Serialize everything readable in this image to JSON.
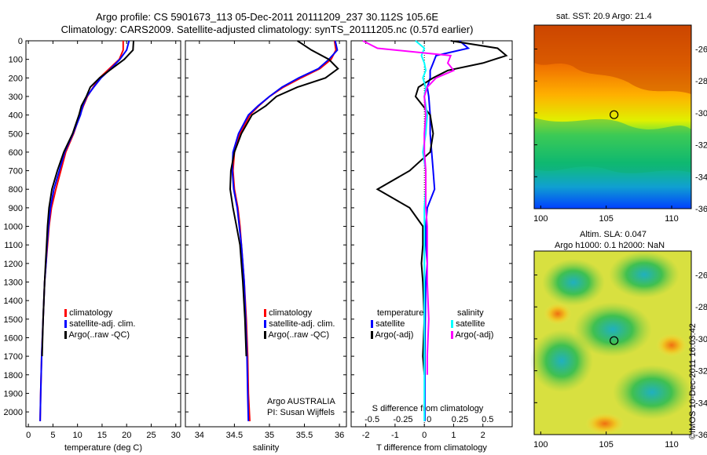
{
  "header": {
    "title_line1": "Argo profile: CS 5901673_113 05-Dec-2011 20111209_237 30.112S 105.6E",
    "title_line2": "Climatology: CARS2009. Satellite-adjusted climatology: synTS_20111205.nc (0.57d earlier)"
  },
  "stamp": "©IMOS 10-Dec-2011 16:03:42",
  "maps": {
    "sst_title": "sat. SST: 20.9 Argo: 21.4",
    "sla_title_line1": "Altim. SLA: 0.047",
    "sla_title_line2": "Argo h1000: 0.1 h2000: NaN",
    "yticks": [
      "-26",
      "-28",
      "-30",
      "-32",
      "-34",
      "-36"
    ],
    "xticks": [
      "100",
      "105",
      "110"
    ],
    "lon_range": [
      99.5,
      111.5
    ],
    "lat_range": [
      -36,
      -24.5
    ],
    "float_position": {
      "lon": 105.6,
      "lat": -30.112
    }
  },
  "colors": {
    "climatology": "#ff0000",
    "satellite": "#0000ff",
    "argo": "#000000",
    "salinity_satellite": "#00ffff",
    "salinity_argo": "#ff00ff"
  },
  "legend": {
    "climatology": "climatology",
    "satellite": "satellite-adj. clim.",
    "argo": "Argo(..raw -QC)",
    "diff_temperature": "temperature",
    "diff_salinity": "salinity",
    "diff_satellite": "satellite",
    "diff_argo": "Argo(-adj)"
  },
  "annotation": {
    "line1": "Argo AUSTRALIA",
    "line2": "PI: Susan Wijffels"
  },
  "chart_data": [
    {
      "type": "line",
      "panel": "temperature",
      "xlabel": "temperature (deg C)",
      "ylabel": "",
      "xlim": [
        -0.5,
        31
      ],
      "ylim": [
        2080,
        0
      ],
      "xticks": [
        0,
        5,
        10,
        15,
        20,
        25,
        30
      ],
      "yticks": [
        0,
        100,
        200,
        300,
        400,
        500,
        600,
        700,
        800,
        900,
        1000,
        1100,
        1200,
        1300,
        1400,
        1500,
        1600,
        1700,
        1800,
        1900,
        2000
      ],
      "series": [
        {
          "name": "climatology",
          "color": "#ff0000",
          "x": [
            19.3,
            19.3,
            18.5,
            16.5,
            14.5,
            13.2,
            12.0,
            11.2,
            10.5,
            9.2,
            7.6,
            6.6,
            5.6,
            4.7,
            4.2,
            3.9,
            3.6,
            3.3,
            3.0,
            2.7,
            2.5,
            2.4
          ],
          "y": [
            0,
            50,
            100,
            150,
            200,
            250,
            300,
            350,
            400,
            500,
            600,
            700,
            800,
            900,
            1000,
            1100,
            1200,
            1300,
            1500,
            1700,
            1900,
            2050
          ]
        },
        {
          "name": "satellite-adj. clim.",
          "color": "#0000ff",
          "x": [
            20.5,
            20.0,
            18.6,
            16.8,
            14.8,
            13.3,
            11.9,
            11.1,
            10.6,
            9.1,
            7.4,
            6.3,
            5.2,
            4.5,
            4.1,
            3.8,
            3.6,
            3.3,
            3.0,
            2.7,
            2.5,
            2.4
          ],
          "y": [
            0,
            50,
            100,
            150,
            200,
            250,
            300,
            350,
            400,
            500,
            600,
            700,
            800,
            900,
            1000,
            1100,
            1200,
            1300,
            1500,
            1700,
            1900,
            2050
          ]
        },
        {
          "name": "Argo(..raw -QC)",
          "color": "#000000",
          "x": [
            21.4,
            21.3,
            19.5,
            17.0,
            14.5,
            12.6,
            11.8,
            10.8,
            10.3,
            9.0,
            7.2,
            5.9,
            4.8,
            4.2,
            3.9,
            3.7,
            3.5,
            3.3,
            3.0,
            2.8
          ],
          "y": [
            0,
            50,
            100,
            150,
            200,
            250,
            300,
            350,
            400,
            500,
            600,
            700,
            800,
            900,
            1000,
            1100,
            1200,
            1300,
            1500,
            1700
          ]
        }
      ]
    },
    {
      "type": "line",
      "panel": "salinity",
      "xlabel": "salinity",
      "ylabel": "",
      "xlim": [
        33.8,
        36.1
      ],
      "ylim": [
        2080,
        0
      ],
      "xticks": [
        34,
        34.5,
        35,
        35.5,
        36
      ],
      "series": [
        {
          "name": "climatology",
          "color": "#ff0000",
          "x": [
            35.93,
            35.95,
            35.88,
            35.72,
            35.45,
            35.2,
            35.0,
            34.85,
            34.72,
            34.58,
            34.5,
            34.48,
            34.5,
            34.55,
            34.58,
            34.6,
            34.62,
            34.64,
            34.67,
            34.69,
            34.7,
            34.72
          ],
          "y": [
            0,
            50,
            100,
            150,
            200,
            250,
            300,
            350,
            400,
            500,
            600,
            700,
            800,
            900,
            1000,
            1100,
            1200,
            1300,
            1500,
            1700,
            1900,
            2050
          ]
        },
        {
          "name": "satellite-adj. clim.",
          "color": "#0000ff",
          "x": [
            35.94,
            35.97,
            35.85,
            35.7,
            35.42,
            35.18,
            35.0,
            34.84,
            34.7,
            34.56,
            34.48,
            34.47,
            34.49,
            34.54,
            34.57,
            34.6,
            34.62,
            34.64,
            34.66,
            34.68,
            34.69,
            34.7
          ],
          "y": [
            0,
            50,
            100,
            150,
            200,
            250,
            300,
            350,
            400,
            500,
            600,
            700,
            800,
            900,
            1000,
            1100,
            1200,
            1300,
            1500,
            1700,
            1900,
            2050
          ]
        },
        {
          "name": "Argo(..raw -QC)",
          "color": "#000000",
          "x": [
            35.4,
            35.6,
            35.85,
            35.98,
            35.8,
            35.4,
            35.1,
            34.95,
            34.75,
            34.6,
            34.5,
            34.45,
            34.44,
            34.48,
            34.53,
            34.58,
            34.6,
            34.62,
            34.65,
            34.67
          ],
          "y": [
            0,
            50,
            100,
            150,
            200,
            250,
            300,
            350,
            400,
            500,
            600,
            700,
            800,
            900,
            1000,
            1100,
            1200,
            1300,
            1500,
            1700
          ]
        }
      ]
    },
    {
      "type": "line",
      "panel": "difference",
      "xlabel": "T difference from climatology",
      "xlabel_top": "S difference from climatology",
      "ylabel": "",
      "xlim": [
        -2.5,
        3.0
      ],
      "ylim": [
        2080,
        0
      ],
      "xticks": [
        -2,
        -1,
        0,
        1,
        2
      ],
      "xticks_salinity": [
        "-0.5",
        "-0.25",
        "0",
        "0.25",
        "0.5"
      ],
      "xticks_salinity_positions_T": [
        -2,
        -1,
        0,
        1,
        2
      ],
      "series": [
        {
          "name": "temperature satellite",
          "color": "#0000ff",
          "x": [
            1.2,
            1.5,
            0.4,
            0.3,
            0.2,
            0.2,
            0.1,
            0.15,
            0.2,
            0.2,
            0.25,
            0.3,
            0.35,
            0.1,
            0.05,
            0.05,
            0.1,
            0.05,
            0.03,
            0.02,
            0.02
          ],
          "y": [
            0,
            40,
            80,
            120,
            160,
            200,
            250,
            300,
            400,
            500,
            600,
            700,
            800,
            900,
            1000,
            1100,
            1200,
            1300,
            1500,
            1700,
            2050
          ]
        },
        {
          "name": "temperature Argo(-adj)",
          "color": "#000000",
          "x": [
            0.9,
            2.5,
            2.8,
            2.0,
            0.8,
            0.3,
            -0.2,
            -0.3,
            0.2,
            0.3,
            0.2,
            -0.5,
            -1.6,
            -0.5,
            -0.05,
            -0.05,
            -0.1,
            -0.05,
            0.0,
            -0.05,
            0.0
          ],
          "y": [
            0,
            40,
            80,
            120,
            160,
            200,
            250,
            300,
            400,
            500,
            600,
            700,
            800,
            900,
            1000,
            1100,
            1200,
            1300,
            1500,
            1700,
            1800
          ]
        },
        {
          "name": "salinity satellite",
          "color": "#00ffff",
          "x": [
            -0.3,
            0.0,
            -0.1,
            0.0,
            0.05,
            -0.05,
            0.05,
            0.0,
            0.1,
            0.05,
            -0.05,
            0.05,
            0.05,
            0.0,
            0.0,
            0.0,
            0.0,
            0.0,
            0.0,
            0.0,
            0.0
          ],
          "y": [
            0,
            40,
            80,
            120,
            160,
            200,
            250,
            300,
            400,
            500,
            600,
            700,
            800,
            900,
            1000,
            1100,
            1200,
            1300,
            1500,
            1700,
            2050
          ]
        },
        {
          "name": "salinity Argo(-adj)",
          "color": "#ff00ff",
          "x": [
            -2.1,
            -1.6,
            0.9,
            0.8,
            1.0,
            0.4,
            0.1,
            0.0,
            0.05,
            0.0,
            0.0,
            0.05,
            0.05,
            0.05,
            0.1,
            0.1,
            0.1,
            0.1,
            0.15,
            0.1,
            0.1
          ],
          "y": [
            0,
            40,
            80,
            120,
            160,
            200,
            250,
            300,
            400,
            500,
            600,
            700,
            800,
            900,
            1000,
            1100,
            1200,
            1300,
            1500,
            1700,
            1800
          ]
        }
      ]
    }
  ]
}
